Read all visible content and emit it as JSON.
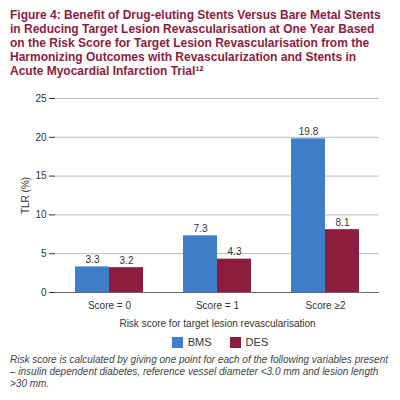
{
  "chart_data": {
    "type": "bar",
    "title": "Figure 4: Benefit of Drug-eluting Stents Versus Bare Metal Stents in Reducing Target Lesion Revascularisation at One Year Based on the Risk Score for Target Lesion Revascularisation from the Harmonizing Outcomes with Revascularization and Stents in Acute Myocardial Infarction Trial¹²",
    "caption": "Risk score is calculated by giving one point for each of the following variables present – insulin dependent diabetes, reference vessel diameter <3.0 mm and lesion length >30 mm.",
    "xlabel": "Risk score for target lesion revascularisation",
    "ylabel": "TLR (%)",
    "categories": [
      "Score = 0",
      "Score = 1",
      "Score ≥2"
    ],
    "series": [
      {
        "name": "BMS",
        "color": "#3f7fca",
        "values": [
          3.3,
          7.3,
          19.8
        ]
      },
      {
        "name": "DES",
        "color": "#8e1c3f",
        "values": [
          3.2,
          4.3,
          8.1
        ]
      }
    ],
    "ylim": [
      0,
      25
    ],
    "yticks": [
      0,
      5,
      10,
      15,
      20,
      25
    ],
    "grid": true,
    "legend": "bottom",
    "data_labels": true
  }
}
